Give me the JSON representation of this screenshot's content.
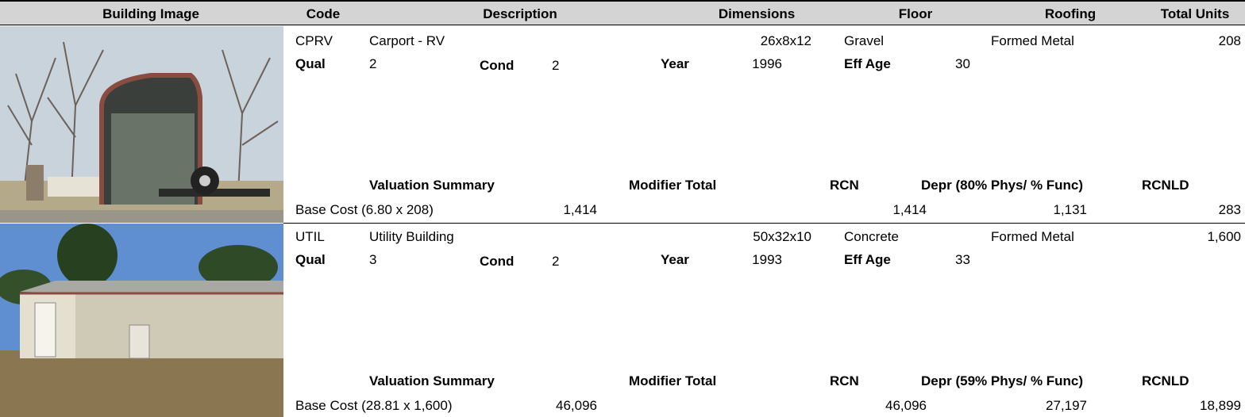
{
  "header": [
    "Building Image",
    "Code",
    "Description",
    "Dimensions",
    "Floor",
    "Roofing",
    "Total Units"
  ],
  "records": [
    {
      "code": "CPRV",
      "description": "Carport - RV",
      "dimensions": "26x8x12",
      "floor": "Gravel",
      "roofing": "Formed Metal",
      "total_units": "208",
      "qual_label": "Qual",
      "qual": "2",
      "cond_label": "Cond",
      "cond": "2",
      "year_label": "Year",
      "year": "1996",
      "eff_age_label": "Eff Age",
      "eff_age": "30",
      "valuation_summary": "Valuation Summary",
      "modifier_total": "Modifier Total",
      "rcn_label": "RCN",
      "depr_label": "Depr (80% Phys/ % Func)",
      "rcnld_label": "RCNLD",
      "base_cost_label": "Base Cost (6.80 x 208)",
      "base_cost": "1,414",
      "rcn": "1,414",
      "depr": "1,131",
      "rcnld": "283"
    },
    {
      "code": "UTIL",
      "description": "Utility Building",
      "dimensions": "50x32x10",
      "floor": "Concrete",
      "roofing": "Formed Metal",
      "total_units": "1,600",
      "qual_label": "Qual",
      "qual": "3",
      "cond_label": "Cond",
      "cond": "2",
      "year_label": "Year",
      "year": "1993",
      "eff_age_label": "Eff Age",
      "eff_age": "33",
      "valuation_summary": "Valuation Summary",
      "modifier_total": "Modifier Total",
      "rcn_label": "RCN",
      "depr_label": "Depr (59% Phys/ % Func)",
      "rcnld_label": "RCNLD",
      "base_cost_label": "Base Cost (28.81 x 1,600)",
      "base_cost": "46,096",
      "rcn": "46,096",
      "depr": "27,197",
      "rcnld": "18,899"
    }
  ]
}
